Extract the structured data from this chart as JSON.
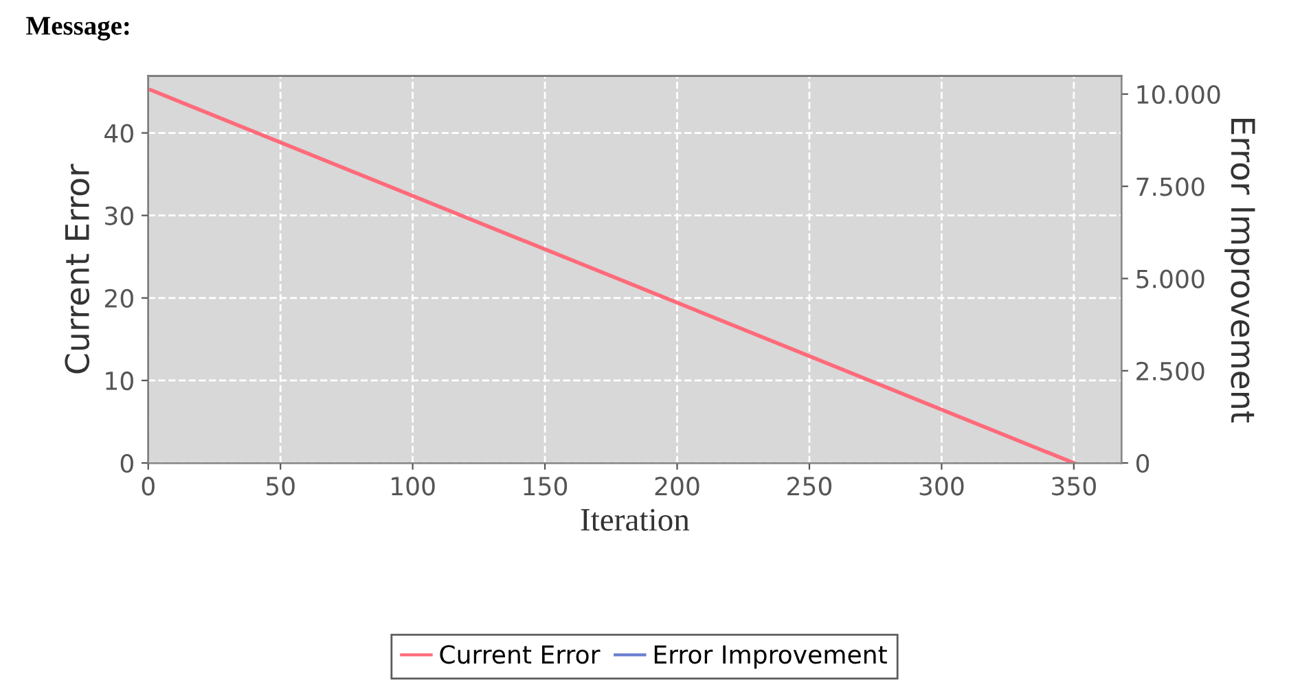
{
  "chart_data": {
    "type": "line",
    "title": "Message:",
    "xlabel": "Iteration",
    "ylabel": "Current Error",
    "y2label": "Error Improvement",
    "x": [
      1,
      350
    ],
    "series": [
      {
        "name": "Current Error",
        "color": "#ff6b7a",
        "values": [
          45.2,
          0
        ]
      },
      {
        "name": "Error Improvement",
        "color": "#6a7fd0",
        "values": [
          null,
          null
        ]
      }
    ],
    "xlim": [
      0,
      368
    ],
    "xticks": [
      0,
      50,
      100,
      150,
      200,
      250,
      300,
      350
    ],
    "ylim": [
      0,
      46.9
    ],
    "yticks": [
      0,
      10,
      20,
      30,
      40
    ],
    "y2lim": [
      0,
      10490
    ],
    "y2ticks": [
      {
        "value": 0,
        "label": "0"
      },
      {
        "value": 2500,
        "label": "2.500"
      },
      {
        "value": 5000,
        "label": "5.000"
      },
      {
        "value": 7500,
        "label": "7.500"
      },
      {
        "value": 10000,
        "label": "10.000"
      }
    ],
    "grid": true,
    "legend": "bottom",
    "marker": "none",
    "line_style": "solid"
  }
}
